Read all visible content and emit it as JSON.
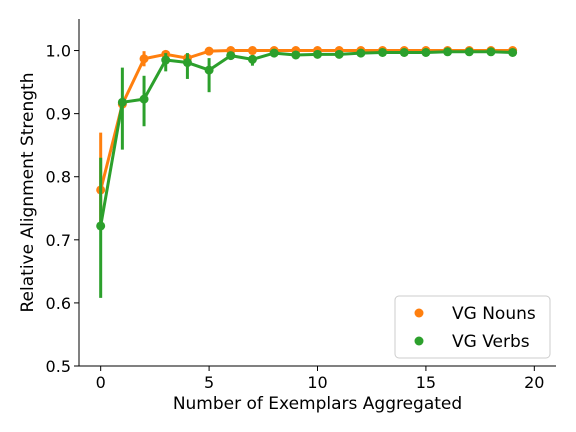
{
  "chart_data": {
    "type": "line",
    "xlabel": "Number of Exemplars Aggregated",
    "ylabel": "Relative Alignment Strength",
    "xlim": [
      -1,
      21
    ],
    "ylim": [
      0.5,
      1.05
    ],
    "xticks": [
      0,
      5,
      10,
      15,
      20
    ],
    "yticks": [
      0.5,
      0.6,
      0.7,
      0.8,
      0.9,
      1.0
    ],
    "ytick_labels": [
      "0.5",
      "0.6",
      "0.7",
      "0.8",
      "0.9",
      "1.0"
    ],
    "grid": false,
    "legend_position": "lower-right",
    "x": [
      0,
      1,
      2,
      3,
      4,
      5,
      6,
      7,
      8,
      9,
      10,
      11,
      12,
      13,
      14,
      15,
      16,
      17,
      18,
      19
    ],
    "series": [
      {
        "name": "VG Nouns",
        "color": "#ff7f0e",
        "values": [
          0.779,
          0.915,
          0.987,
          0.994,
          0.988,
          0.999,
          1.0,
          1.0,
          1.0,
          1.0,
          1.0,
          1.0,
          1.0,
          1.0,
          1.0,
          1.0,
          1.0,
          1.0,
          1.0,
          1.0
        ],
        "error_low": [
          0.72,
          0.91,
          0.975,
          0.99,
          0.982,
          0.996,
          0.999,
          0.999,
          0.999,
          0.999,
          0.999,
          0.999,
          0.999,
          0.999,
          0.999,
          0.999,
          0.999,
          0.999,
          0.999,
          0.999
        ],
        "error_high": [
          0.87,
          0.92,
          0.999,
          0.998,
          0.994,
          1.001,
          1.001,
          1.001,
          1.001,
          1.001,
          1.001,
          1.001,
          1.001,
          1.001,
          1.001,
          1.001,
          1.001,
          1.001,
          1.001,
          1.001
        ]
      },
      {
        "name": "VG Verbs",
        "color": "#2ca02c",
        "values": [
          0.722,
          0.918,
          0.923,
          0.985,
          0.981,
          0.969,
          0.992,
          0.986,
          0.996,
          0.993,
          0.994,
          0.994,
          0.996,
          0.997,
          0.997,
          0.997,
          0.998,
          0.998,
          0.998,
          0.997
        ],
        "error_low": [
          0.608,
          0.843,
          0.88,
          0.967,
          0.955,
          0.934,
          0.986,
          0.976,
          0.992,
          0.989,
          0.99,
          0.99,
          0.993,
          0.995,
          0.995,
          0.995,
          0.996,
          0.996,
          0.996,
          0.995
        ],
        "error_high": [
          0.83,
          0.973,
          0.96,
          0.996,
          0.996,
          0.988,
          0.997,
          0.993,
          0.999,
          0.997,
          0.998,
          0.998,
          0.999,
          0.999,
          0.999,
          0.999,
          1.0,
          1.0,
          1.0,
          0.999
        ]
      }
    ]
  }
}
